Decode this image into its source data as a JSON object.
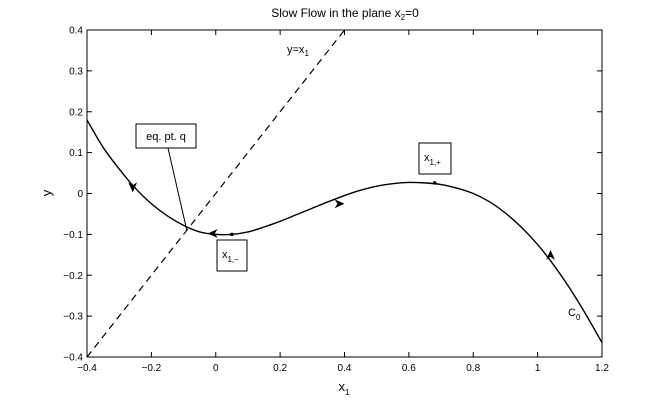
{
  "chart_data": {
    "type": "line",
    "title_main": "Slow Flow in the plane x",
    "title_sub": "2",
    "title_tail": "=0",
    "xlabel_main": "x",
    "xlabel_sub": "1",
    "ylabel": "y",
    "xlim": [
      -0.4,
      1.2
    ],
    "ylim": [
      -0.4,
      0.4
    ],
    "xticks": [
      -0.4,
      -0.2,
      0,
      0.2,
      0.4,
      0.6,
      0.8,
      1,
      1.2
    ],
    "xtick_labels": [
      "−0.4",
      "−0.2",
      "0",
      "0.2",
      "0.4",
      "0.6",
      "0.8",
      "1",
      "1.2"
    ],
    "yticks": [
      -0.4,
      -0.3,
      -0.2,
      -0.1,
      0,
      0.1,
      0.2,
      0.3,
      0.4
    ],
    "ytick_labels": [
      "−0.4",
      "−0.3",
      "−0.2",
      "−0.1",
      "0",
      "0.1",
      "0.2",
      "0.3",
      "0.4"
    ],
    "grid": false,
    "series": [
      {
        "style": "solid",
        "x": [
          -0.4,
          -0.35,
          -0.3,
          -0.25,
          -0.2,
          -0.15,
          -0.1,
          -0.05,
          0,
          0.05,
          0.1,
          0.15,
          0.2,
          0.25,
          0.3,
          0.35,
          0.4,
          0.45,
          0.5,
          0.55,
          0.6,
          0.65,
          0.7,
          0.75,
          0.8,
          0.85,
          0.9,
          0.95,
          1.0,
          1.05,
          1.1,
          1.15,
          1.2
        ],
        "y": [
          0.18,
          0.113,
          0.06,
          0.013,
          -0.025,
          -0.055,
          -0.078,
          -0.094,
          -0.1,
          -0.1,
          -0.094,
          -0.082,
          -0.068,
          -0.052,
          -0.036,
          -0.02,
          -0.005,
          0.008,
          0.018,
          0.024,
          0.027,
          0.026,
          0.022,
          0.013,
          0.0,
          -0.02,
          -0.048,
          -0.083,
          -0.125,
          -0.175,
          -0.232,
          -0.296,
          -0.365
        ]
      },
      {
        "name": "y=x1",
        "style": "dashed",
        "x": [
          -0.4,
          0.4
        ],
        "y": [
          -0.4,
          0.4
        ]
      }
    ],
    "arrows": [
      {
        "x": -0.258,
        "y": 0.003,
        "dir": "down"
      },
      {
        "x": -0.025,
        "y": -0.098,
        "dir": "left"
      },
      {
        "x": 0.4,
        "y": -0.025,
        "dir": "right"
      },
      {
        "x": 1.04,
        "y": -0.138,
        "dir": "up"
      }
    ],
    "points": [
      {
        "x": 0.05,
        "y": -0.1
      },
      {
        "x": 0.68,
        "y": 0.026
      }
    ],
    "annotations": {
      "line_label_main": "y=x",
      "line_label_sub": "1",
      "eq_label": "eq. pt. q",
      "eq_target": {
        "x": -0.09,
        "y": -0.09
      },
      "x_minus_main": "x",
      "x_minus_sub": "1,−",
      "x_plus_main": "x",
      "x_plus_sub": "1,+",
      "curve_label_main": "C",
      "curve_label_sub": "0"
    }
  }
}
